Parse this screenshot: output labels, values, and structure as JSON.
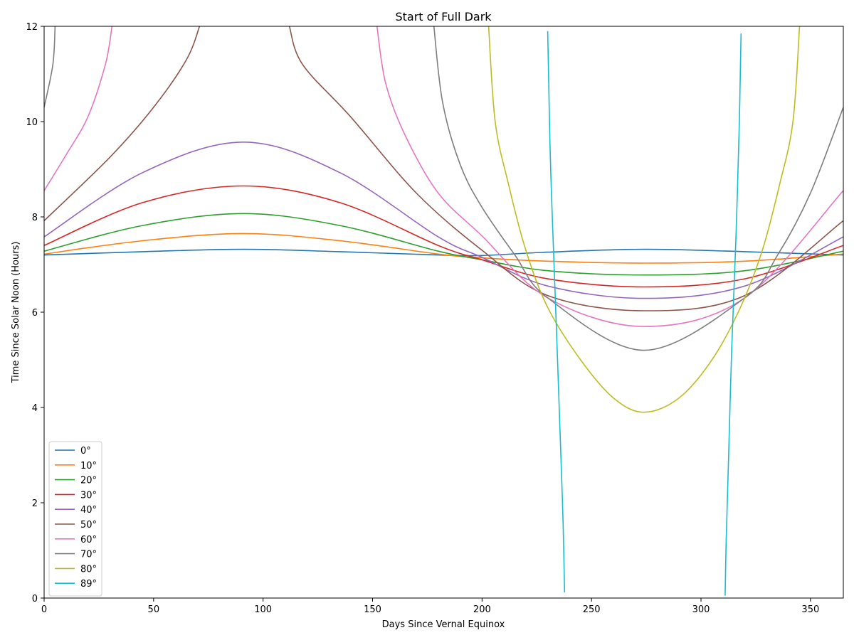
{
  "chart_data": {
    "type": "line",
    "title": "Start of Full Dark",
    "xlabel": "Days Since Vernal Equinox",
    "ylabel": "Time Since Solar Noon (Hours)",
    "xlim": [
      0,
      365
    ],
    "ylim": [
      0,
      12
    ],
    "xticks": [
      0,
      50,
      100,
      150,
      200,
      250,
      300,
      350
    ],
    "yticks": [
      0,
      2,
      4,
      6,
      8,
      10,
      12
    ],
    "grid": false,
    "legend_position": "lower-left",
    "series": [
      {
        "name": "0°",
        "color": "#1f77b4",
        "segments": [
          [
            [
              0,
              7.2
            ],
            [
              45,
              7.27
            ],
            [
              91,
              7.32
            ],
            [
              135,
              7.27
            ],
            [
              180,
              7.2
            ],
            [
              200,
              7.19
            ],
            [
              230,
              7.26
            ],
            [
              274,
              7.32
            ],
            [
              320,
              7.27
            ],
            [
              365,
              7.2
            ]
          ]
        ]
      },
      {
        "name": "10°",
        "color": "#ff7f0e",
        "segments": [
          [
            [
              0,
              7.22
            ],
            [
              45,
              7.5
            ],
            [
              91,
              7.65
            ],
            [
              135,
              7.5
            ],
            [
              180,
              7.22
            ],
            [
              200,
              7.14
            ],
            [
              230,
              7.07
            ],
            [
              274,
              7.03
            ],
            [
              320,
              7.07
            ],
            [
              365,
              7.22
            ]
          ]
        ]
      },
      {
        "name": "20°",
        "color": "#2ca02c",
        "segments": [
          [
            [
              0,
              7.28
            ],
            [
              45,
              7.82
            ],
            [
              91,
              8.07
            ],
            [
              135,
              7.82
            ],
            [
              180,
              7.28
            ],
            [
              200,
              7.1
            ],
            [
              230,
              6.87
            ],
            [
              274,
              6.78
            ],
            [
              320,
              6.87
            ],
            [
              365,
              7.28
            ]
          ]
        ]
      },
      {
        "name": "30°",
        "color": "#d62728",
        "segments": [
          [
            [
              0,
              7.4
            ],
            [
              45,
              8.3
            ],
            [
              91,
              8.65
            ],
            [
              135,
              8.3
            ],
            [
              180,
              7.4
            ],
            [
              200,
              7.1
            ],
            [
              230,
              6.7
            ],
            [
              274,
              6.53
            ],
            [
              320,
              6.7
            ],
            [
              365,
              7.4
            ]
          ]
        ]
      },
      {
        "name": "40°",
        "color": "#9467bd",
        "segments": [
          [
            [
              0,
              7.58
            ],
            [
              45,
              8.93
            ],
            [
              91,
              9.57
            ],
            [
              135,
              8.93
            ],
            [
              180,
              7.58
            ],
            [
              200,
              7.15
            ],
            [
              230,
              6.55
            ],
            [
              274,
              6.29
            ],
            [
              320,
              6.55
            ],
            [
              365,
              7.58
            ]
          ]
        ]
      },
      {
        "name": "50°",
        "color": "#8c564b",
        "segments": [
          [
            [
              0,
              7.92
            ],
            [
              30,
              9.25
            ],
            [
              50,
              10.3
            ],
            [
              65,
              11.3
            ],
            [
              71,
              12
            ]
          ],
          [
            [
              112,
              12
            ],
            [
              118,
              11.2
            ],
            [
              140,
              10.1
            ],
            [
              170,
              8.5
            ],
            [
              200,
              7.3
            ],
            [
              230,
              6.35
            ],
            [
              274,
              6.03
            ],
            [
              320,
              6.35
            ],
            [
              365,
              7.92
            ]
          ]
        ]
      },
      {
        "name": "60°",
        "color": "#e377c2",
        "segments": [
          [
            [
              0,
              8.55
            ],
            [
              10,
              9.3
            ],
            [
              20,
              10.1
            ],
            [
              28,
              11.2
            ],
            [
              31,
              12
            ]
          ],
          [
            [
              152,
              12
            ],
            [
              156,
              10.8
            ],
            [
              165,
              9.7
            ],
            [
              180,
              8.5
            ],
            [
              200,
              7.6
            ],
            [
              230,
              6.3
            ],
            [
              274,
              5.7
            ],
            [
              320,
              6.3
            ],
            [
              365,
              8.55
            ]
          ]
        ]
      },
      {
        "name": "70°",
        "color": "#7f7f7f",
        "segments": [
          [
            [
              0,
              10.3
            ],
            [
              4,
              11.2
            ],
            [
              5,
              12
            ]
          ],
          [
            [
              178,
              12
            ],
            [
              182,
              10.4
            ],
            [
              190,
              9.1
            ],
            [
              200,
              8.2
            ],
            [
              215,
              7.2
            ],
            [
              230,
              6.3
            ],
            [
              274,
              5.2
            ],
            [
              320,
              6.3
            ],
            [
              335,
              7.2
            ],
            [
              350,
              8.5
            ],
            [
              365,
              10.3
            ]
          ]
        ]
      },
      {
        "name": "80°",
        "color": "#bcbd22",
        "segments": [
          [
            [
              203,
              12
            ],
            [
              206,
              10
            ],
            [
              212,
              8.7
            ],
            [
              220,
              7.3
            ],
            [
              230,
              6.1
            ],
            [
              245,
              5
            ],
            [
              260,
              4.2
            ],
            [
              274,
              3.9
            ],
            [
              290,
              4.2
            ],
            [
              305,
              5
            ],
            [
              318,
              6.1
            ],
            [
              328,
              7.3
            ],
            [
              336,
              8.7
            ],
            [
              342,
              10
            ],
            [
              345,
              12
            ]
          ]
        ]
      },
      {
        "name": "89°",
        "color": "#17becf",
        "segments": [
          [
            [
              230,
              11.9
            ],
            [
              231,
              9.6
            ],
            [
              232,
              8.1
            ],
            [
              234,
              5.6
            ],
            [
              236,
              3
            ],
            [
              237,
              1.6
            ],
            [
              237.7,
              0.12
            ]
          ],
          [
            [
              311,
              0.05
            ],
            [
              311.5,
              1.2
            ],
            [
              312.5,
              2.8
            ],
            [
              314,
              5.2
            ],
            [
              316,
              7.6
            ],
            [
              317.5,
              10
            ],
            [
              318.3,
              11.85
            ]
          ]
        ]
      }
    ]
  }
}
